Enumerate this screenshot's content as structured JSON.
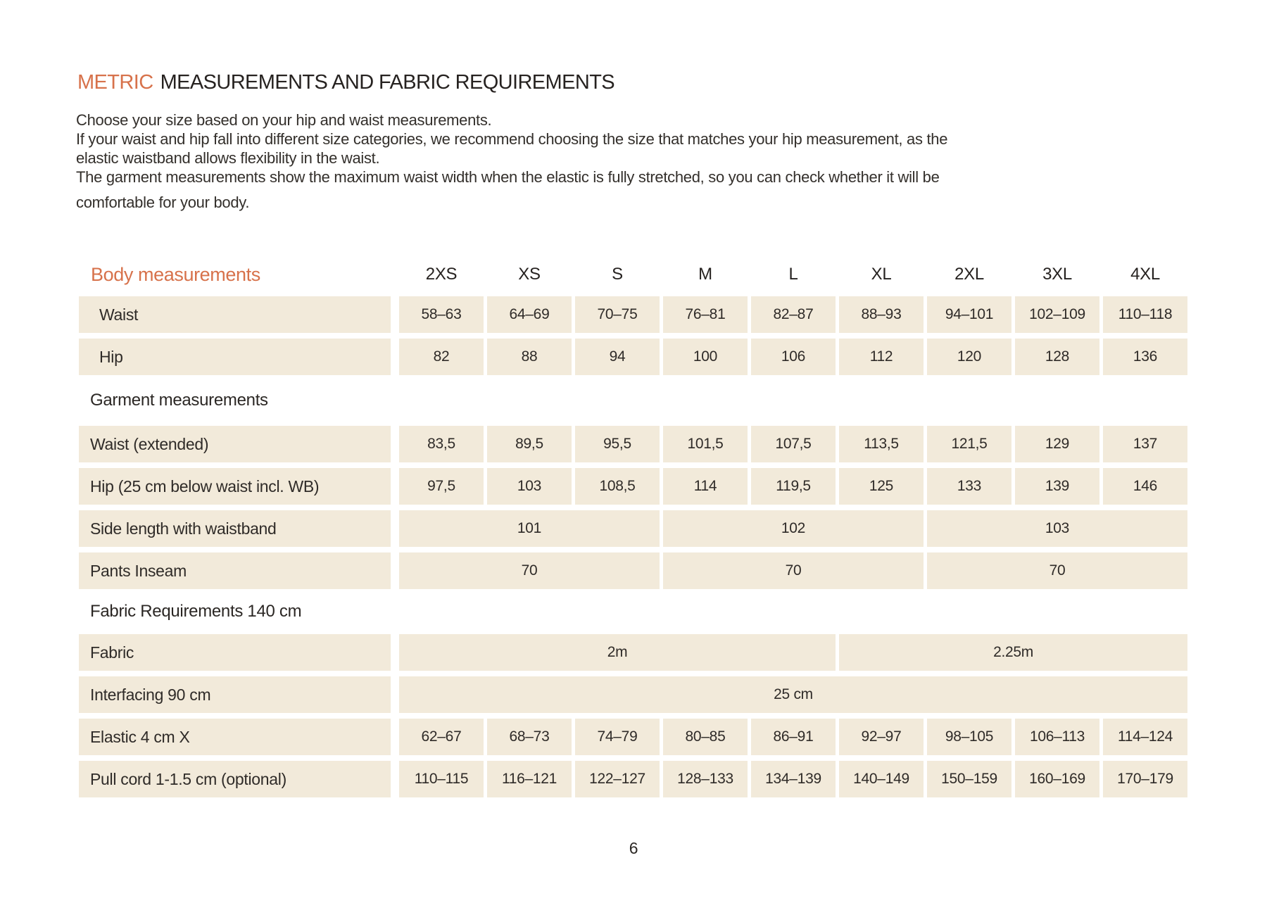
{
  "page": {
    "title_accent": "METRIC",
    "title_rest": "MEASUREMENTS AND FABRIC REQUIREMENTS",
    "intro_lines": [
      "Choose your size based on your hip and waist measurements.",
      "If your waist and hip fall into different size categories, we recommend choosing the size that matches your hip measurement, as the",
      "elastic waistband allows flexibility in the waist.",
      "The garment measurements show the maximum waist width when the elastic is fully stretched, so you can check whether it will be",
      "comfortable for your body."
    ],
    "page_number": "6"
  },
  "colors": {
    "accent_orange": "#d7724b",
    "cell_beige": "#f2eada",
    "text": "#2f2b28",
    "background": "#ffffff"
  },
  "table": {
    "header_label": "Body measurements",
    "sizes": [
      "2XS",
      "XS",
      "S",
      "M",
      "L",
      "XL",
      "2XL",
      "3XL",
      "4XL"
    ],
    "rows": {
      "waist": {
        "label": "Waist",
        "values": [
          "58–63",
          "64–69",
          "70–75",
          "76–81",
          "82–87",
          "88–93",
          "94–101",
          "102–109",
          "110–118"
        ]
      },
      "hip": {
        "label": "Hip",
        "values": [
          "82",
          "88",
          "94",
          "100",
          "106",
          "112",
          "120",
          "128",
          "136"
        ]
      },
      "garment_section_label": "Garment measurements",
      "waist_extended": {
        "label": "Waist (extended)",
        "values": [
          "83,5",
          "89,5",
          "95,5",
          "101,5",
          "107,5",
          "113,5",
          "121,5",
          "129",
          "137"
        ]
      },
      "hip_25cm": {
        "label": "Hip (25 cm below waist incl. WB)",
        "values": [
          "97,5",
          "103",
          "108,5",
          "114",
          "119,5",
          "125",
          "133",
          "139",
          "146"
        ]
      },
      "side_length": {
        "label": "Side length with waistband",
        "values": [
          "101",
          "102",
          "103"
        ]
      },
      "pants_inseam": {
        "label": "Pants Inseam",
        "values": [
          "70",
          "70",
          "70"
        ]
      },
      "fabric_section_label": "Fabric Requirements 140 cm",
      "fabric": {
        "label": "Fabric",
        "values": [
          "2m",
          "2.25m"
        ]
      },
      "interfacing": {
        "label": "Interfacing 90 cm",
        "values": [
          "25 cm"
        ]
      },
      "elastic": {
        "label": "Elastic 4 cm X",
        "values": [
          "62–67",
          "68–73",
          "74–79",
          "80–85",
          "86–91",
          "92–97",
          "98–105",
          "106–113",
          "114–124"
        ]
      },
      "pull_cord": {
        "label": "Pull cord 1-1.5 cm (optional)",
        "values": [
          "110–115",
          "116–121",
          "122–127",
          "128–133",
          "134–139",
          "140–149",
          "150–159",
          "160–169",
          "170–179"
        ]
      }
    }
  }
}
